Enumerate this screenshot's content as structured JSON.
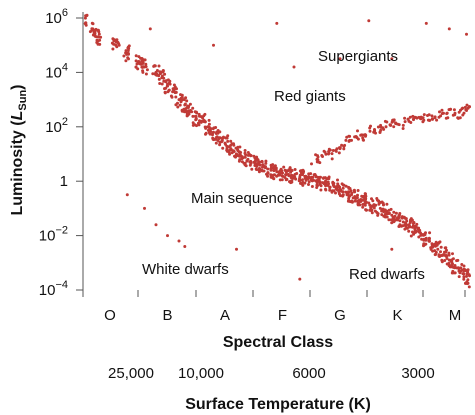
{
  "chart_data": {
    "type": "scatter",
    "title": "",
    "ylabel": "Luminosity",
    "ylabel_sub": "Sun",
    "ylabel_prefix": "L",
    "y_scale": "log",
    "ylim": [
      0.0001,
      1000000
    ],
    "y_ticks": [
      {
        "value": 1000000,
        "base": "10",
        "exp": "6"
      },
      {
        "value": 10000,
        "base": "10",
        "exp": "4"
      },
      {
        "value": 100,
        "base": "10",
        "exp": "2"
      },
      {
        "value": 1,
        "base": "1",
        "exp": ""
      },
      {
        "value": 0.01,
        "base": "10",
        "exp": "−2"
      },
      {
        "value": 0.0001,
        "base": "10",
        "exp": "−4"
      }
    ],
    "x_title": "Spectral Class",
    "x_categories": [
      "O",
      "B",
      "A",
      "F",
      "G",
      "K",
      "M"
    ],
    "x2_title": "Surface Temperature (K)",
    "x2_ticks": [
      "25,000",
      "10,000",
      "6000",
      "3000"
    ],
    "annotations": [
      "Supergiants",
      "Red giants",
      "Main sequence",
      "White dwarfs",
      "Red dwarfs"
    ],
    "series": [
      {
        "marker_color": "#c03a36",
        "x_unit": "spectral class index (O=0 … M=6)",
        "points_note": "representative sample of the plotted stars",
        "main_sequence": [
          [
            -0.45,
            5.9
          ],
          [
            -0.3,
            5.6
          ],
          [
            -0.2,
            5.3
          ],
          [
            0.1,
            5.0
          ],
          [
            0.3,
            4.7
          ],
          [
            0.5,
            4.4
          ],
          [
            0.6,
            4.2
          ],
          [
            0.8,
            4.0
          ],
          [
            0.9,
            3.8
          ],
          [
            1.0,
            3.5
          ],
          [
            1.1,
            3.3
          ],
          [
            1.2,
            3.0
          ],
          [
            1.3,
            2.8
          ],
          [
            1.4,
            2.6
          ],
          [
            1.5,
            2.3
          ],
          [
            1.6,
            2.2
          ],
          [
            1.7,
            2.0
          ],
          [
            1.8,
            1.8
          ],
          [
            1.9,
            1.6
          ],
          [
            2.0,
            1.4
          ],
          [
            2.1,
            1.2
          ],
          [
            2.2,
            1.0
          ],
          [
            2.3,
            0.9
          ],
          [
            2.4,
            0.8
          ],
          [
            2.5,
            0.7
          ],
          [
            2.6,
            0.6
          ],
          [
            2.7,
            0.5
          ],
          [
            2.8,
            0.4
          ],
          [
            2.9,
            0.35
          ],
          [
            3.0,
            0.3
          ],
          [
            3.1,
            0.25
          ],
          [
            3.2,
            0.2
          ],
          [
            3.3,
            0.15
          ],
          [
            3.4,
            0.1
          ],
          [
            3.5,
            0.05
          ],
          [
            3.6,
            0.0
          ],
          [
            3.7,
            -0.05
          ],
          [
            3.8,
            -0.1
          ],
          [
            3.9,
            -0.2
          ],
          [
            4.0,
            -0.3
          ],
          [
            4.1,
            -0.4
          ],
          [
            4.2,
            -0.5
          ],
          [
            4.3,
            -0.6
          ],
          [
            4.4,
            -0.7
          ],
          [
            4.5,
            -0.8
          ],
          [
            4.6,
            -0.9
          ],
          [
            4.7,
            -1.0
          ],
          [
            4.8,
            -1.1
          ],
          [
            4.9,
            -1.25
          ],
          [
            5.0,
            -1.4
          ],
          [
            5.1,
            -1.5
          ],
          [
            5.2,
            -1.6
          ],
          [
            5.3,
            -1.75
          ],
          [
            5.4,
            -1.9
          ],
          [
            5.5,
            -2.1
          ],
          [
            5.6,
            -2.3
          ],
          [
            5.7,
            -2.5
          ],
          [
            5.8,
            -2.7
          ],
          [
            5.9,
            -2.9
          ],
          [
            6.0,
            -3.1
          ],
          [
            6.1,
            -3.3
          ],
          [
            6.2,
            -3.5
          ],
          [
            6.3,
            -3.7
          ],
          [
            6.4,
            -3.9
          ]
        ],
        "giants": [
          [
            3.6,
            0.8
          ],
          [
            3.8,
            1.0
          ],
          [
            4.0,
            1.2
          ],
          [
            4.2,
            1.5
          ],
          [
            4.4,
            1.7
          ],
          [
            4.6,
            1.9
          ],
          [
            4.8,
            2.0
          ],
          [
            5.0,
            2.1
          ],
          [
            5.2,
            2.2
          ],
          [
            5.4,
            2.3
          ],
          [
            5.6,
            2.4
          ],
          [
            5.8,
            2.5
          ],
          [
            6.0,
            2.5
          ],
          [
            6.2,
            2.6
          ],
          [
            6.4,
            2.6
          ]
        ],
        "supergiants": [
          [
            0.7,
            5.6
          ],
          [
            1.8,
            5.0
          ],
          [
            2.9,
            5.8
          ],
          [
            4.5,
            5.9
          ],
          [
            4.9,
            4.5
          ],
          [
            5.5,
            5.8
          ],
          [
            5.9,
            5.6
          ],
          [
            6.2,
            5.4
          ],
          [
            6.4,
            5.6
          ],
          [
            3.2,
            4.2
          ],
          [
            4.0,
            4.5
          ]
        ],
        "white_dwarfs": [
          [
            0.3,
            -0.5
          ],
          [
            0.6,
            -1.0
          ],
          [
            0.8,
            -1.6
          ],
          [
            1.0,
            -2.0
          ],
          [
            1.2,
            -2.2
          ],
          [
            1.3,
            -2.4
          ],
          [
            2.2,
            -2.5
          ],
          [
            3.3,
            -3.6
          ],
          [
            4.9,
            -2.5
          ]
        ]
      }
    ]
  }
}
